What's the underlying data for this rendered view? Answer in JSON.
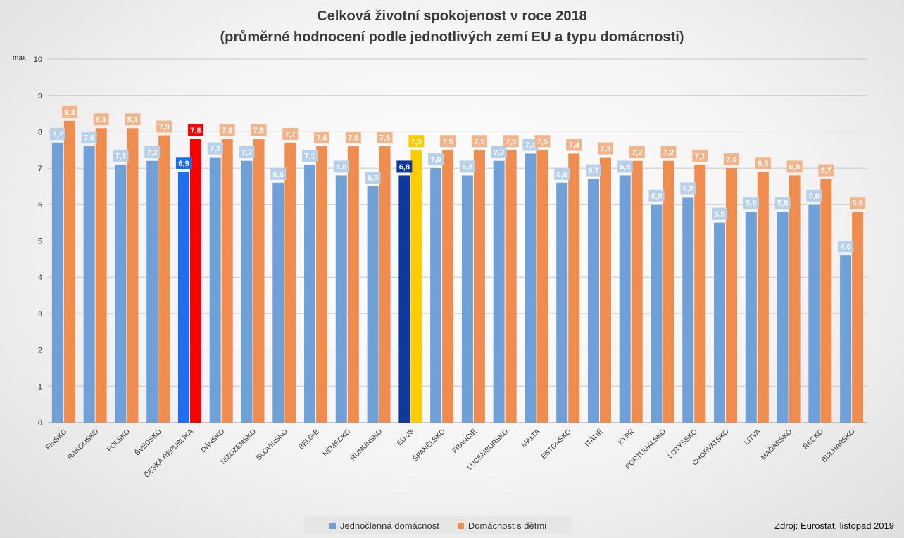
{
  "title": "Celková životní spokojenost v roce 2018",
  "subtitle": "(průměrné hodnocení podle jednotlivých zemí EU a typu domácnosti)",
  "source": "Zdroj: Eurostat, listopad 2019",
  "ymax_label": "max",
  "colors": {
    "series1": "#6fa1d8",
    "series2": "#ef8c4e",
    "series1_label_bg": "#b7d0ec",
    "series2_label_bg": "#f4b48a",
    "highlight_cz_single": "#1c6ff2",
    "highlight_cz_family": "#ff0000",
    "highlight_eu_single": "#0e3aa0",
    "highlight_eu_family": "#ffcc00",
    "grid": "#c8c8c8"
  },
  "chart_data": {
    "type": "bar",
    "title": "Celková životní spokojenost v roce 2018",
    "subtitle": "(průměrné hodnocení podle jednotlivých zemí EU a typu domácnosti)",
    "ylim": [
      0,
      10
    ],
    "yticks": [
      "0",
      "1",
      "2",
      "3",
      "4",
      "5",
      "6",
      "7",
      "8",
      "9",
      "10"
    ],
    "grid": true,
    "legend_position": "bottom",
    "categories": [
      "FINSKO",
      "RAKOUSKO",
      "POLSKO",
      "ŠVÉDSKO",
      "ČESKÁ REPUBLIKA",
      "DÁNSKO",
      "NIZOZEMSKO",
      "SLOVINSKO",
      "BELGIE",
      "NĚMECKO",
      "RUMUNSKO",
      "EU-28",
      "ŠPANĚLSKO",
      "FRANCIE",
      "LUCEMBURSKO",
      "MALTA",
      "ESTONSKO",
      "ITÁLIE",
      "KYPR",
      "PORTUGALSKO",
      "LOTYŠSKO",
      "CHORVATSKO",
      "LITVA",
      "MAĎARSKO",
      "ŘECKO",
      "BULHARSKO"
    ],
    "series": [
      {
        "name": "Jednočlenná domácnost",
        "values": [
          7.7,
          7.6,
          7.1,
          7.2,
          6.9,
          7.3,
          7.2,
          6.6,
          7.1,
          6.8,
          6.5,
          6.8,
          7.0,
          6.8,
          7.2,
          7.4,
          6.6,
          6.7,
          6.8,
          6.0,
          6.2,
          5.5,
          5.8,
          5.8,
          6.0,
          4.6
        ],
        "labels": [
          "7,7",
          "7,6",
          "7,1",
          "7,2",
          "6,9",
          "7,3",
          "7,2",
          "6,6",
          "7,1",
          "6,8",
          "6,5",
          "6,8",
          "7,0",
          "6,8",
          "7,2",
          "7,4",
          "6,6",
          "6,7",
          "6,8",
          "6,0",
          "6,2",
          "5,5",
          "5,8",
          "5,8",
          "6,0",
          "4,6"
        ]
      },
      {
        "name": "Domácnost s dětmi",
        "values": [
          8.3,
          8.1,
          8.1,
          7.9,
          7.8,
          7.8,
          7.8,
          7.7,
          7.6,
          7.6,
          7.6,
          7.5,
          7.5,
          7.5,
          7.5,
          7.5,
          7.4,
          7.3,
          7.2,
          7.2,
          7.1,
          7.0,
          6.9,
          6.8,
          6.7,
          5.8
        ],
        "labels": [
          "8,3",
          "8,1",
          "8,1",
          "7,9",
          "7,8",
          "7,8",
          "7,8",
          "7,7",
          "7,6",
          "7,6",
          "7,6",
          "7,5",
          "7,5",
          "7,5",
          "7,5",
          "7,5",
          "7,4",
          "7,3",
          "7,2",
          "7,2",
          "7,1",
          "7,0",
          "6,9",
          "6,8",
          "6,7",
          "5,8"
        ]
      }
    ],
    "highlighted_categories": [
      "ČESKÁ REPUBLIKA",
      "EU-28"
    ]
  }
}
